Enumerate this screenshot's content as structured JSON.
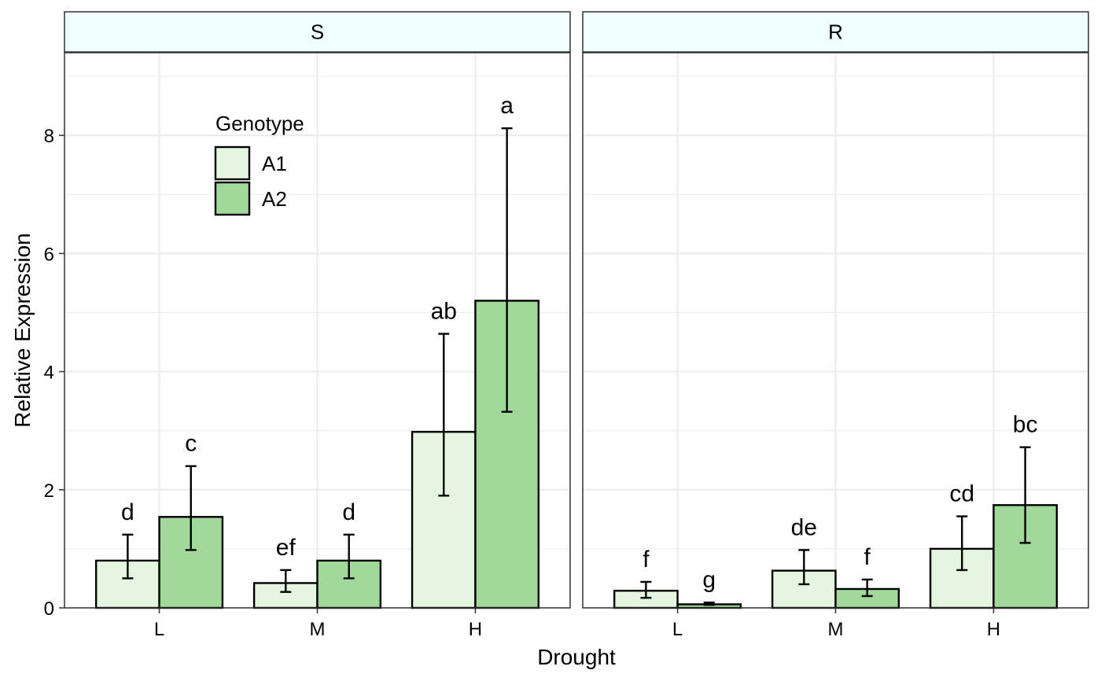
{
  "chart_data": {
    "type": "bar",
    "xlabel": "Drought",
    "ylabel": "Relative Expression",
    "ylim": [
      0,
      9.4
    ],
    "yticks": [
      0,
      2,
      4,
      6,
      8
    ],
    "grid": true,
    "categories": [
      "L",
      "M",
      "H"
    ],
    "legend": {
      "title": "Genotype",
      "placement": "top-left inside panel S",
      "entries": [
        {
          "name": "A1",
          "color": "#e5f5e0"
        },
        {
          "name": "A2",
          "color": "#a1d99b"
        }
      ]
    },
    "panels": [
      {
        "strip": "S",
        "series": [
          {
            "name": "A1",
            "values": [
              0.8,
              0.42,
              2.98
            ],
            "err_low": [
              0.5,
              0.27,
              1.9
            ],
            "err_high": [
              1.24,
              0.64,
              4.64
            ],
            "labels": [
              "d",
              "ef",
              "ab"
            ]
          },
          {
            "name": "A2",
            "values": [
              1.54,
              0.8,
              5.2
            ],
            "err_low": [
              0.98,
              0.5,
              3.32
            ],
            "err_high": [
              2.4,
              1.24,
              8.12
            ],
            "labels": [
              "c",
              "d",
              "a"
            ]
          }
        ]
      },
      {
        "strip": "R",
        "series": [
          {
            "name": "A1",
            "values": [
              0.29,
              0.63,
              1.0
            ],
            "err_low": [
              0.17,
              0.4,
              0.64
            ],
            "err_high": [
              0.44,
              0.98,
              1.55
            ],
            "labels": [
              "f",
              "de",
              "cd"
            ]
          },
          {
            "name": "A2",
            "values": [
              0.06,
              0.32,
              1.74
            ],
            "err_low": [
              0.05,
              0.2,
              1.1
            ],
            "err_high": [
              0.09,
              0.48,
              2.72
            ],
            "labels": [
              "g",
              "f",
              "bc"
            ]
          }
        ]
      }
    ]
  },
  "colors": {
    "strip_fill": "#f0ffff",
    "panel_border": "#333333",
    "grid": "#ebebeb"
  }
}
